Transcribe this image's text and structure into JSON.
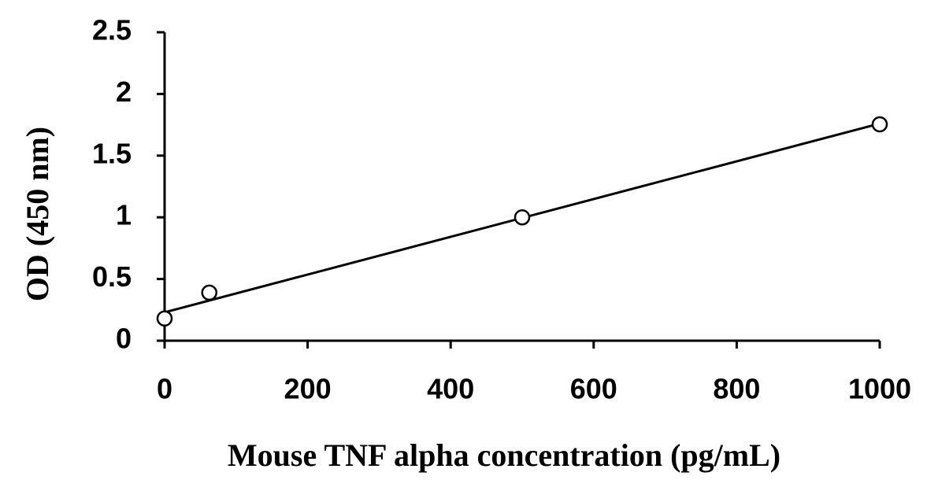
{
  "chart_data": {
    "type": "scatter",
    "x_label": "Mouse TNF alpha concentration (pg/mL)",
    "y_label": "OD (450 nm)",
    "x": [
      0,
      62.5,
      500,
      1000
    ],
    "values": [
      0.18,
      0.39,
      1.0,
      1.754
    ],
    "trendline": {
      "x": [
        0,
        1000
      ],
      "values": [
        0.23,
        1.76
      ]
    },
    "xlim": [
      0,
      1000
    ],
    "ylim": [
      0,
      2.5
    ],
    "xticks": [
      0,
      200,
      400,
      600,
      800,
      1000
    ],
    "yticks": [
      0,
      0.5,
      1,
      1.5,
      2,
      2.5
    ],
    "color": "#000000",
    "grid": false
  }
}
